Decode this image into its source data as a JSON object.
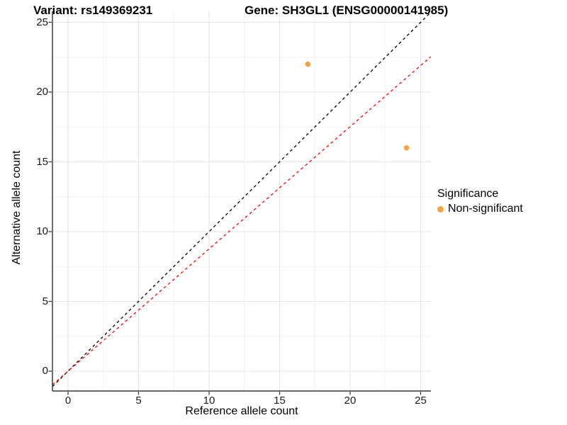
{
  "title": {
    "variant": "Variant: rs149369231",
    "gene": "Gene: SH3GL1 (ENSG00000141985)"
  },
  "chart_data": {
    "type": "scatter",
    "xlabel": "Reference allele count",
    "ylabel": "Alternative allele count",
    "x_ticks": [
      0,
      5,
      10,
      15,
      20,
      25
    ],
    "y_ticks": [
      0,
      5,
      10,
      15,
      20,
      25
    ],
    "xlim": [
      -1.1,
      25.7
    ],
    "ylim": [
      -1.4,
      25.8
    ],
    "grid": "major+minor",
    "legend_position": "right",
    "points": [
      {
        "x": 17,
        "y": 22,
        "series": "Non-significant"
      },
      {
        "x": 24,
        "y": 16,
        "series": "Non-significant"
      }
    ],
    "lines": [
      {
        "name": "identity-line",
        "slope": 1.0,
        "intercept": 0,
        "color": "#000000",
        "style": "dashed"
      },
      {
        "name": "expected-ratio-line",
        "slope": 0.876,
        "intercept": 0,
        "color": "#FF0000",
        "style": "dashed"
      }
    ],
    "legend": {
      "title": "Significance",
      "items": [
        {
          "label": "Non-significant",
          "color": "#F9A242"
        }
      ]
    }
  },
  "colors": {
    "point_orange": "#F9A242",
    "line_red": "#FF0000",
    "line_black": "#000000",
    "grid_major": "#E4E4E4",
    "grid_minor": "#EFEFEF",
    "axis": "#3C3C3C"
  }
}
